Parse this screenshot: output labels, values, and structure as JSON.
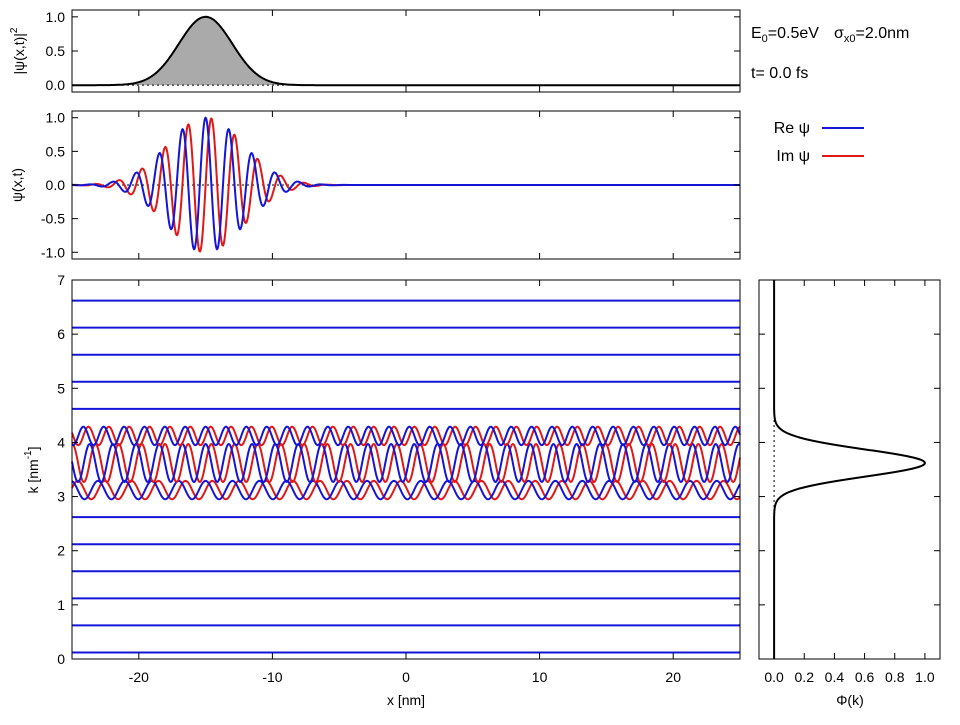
{
  "chart_data": [
    {
      "type": "area",
      "name": "probability-density",
      "xlim": [
        -25,
        25
      ],
      "ylim": [
        -0.1,
        1.1
      ],
      "ylabel": "|ψ(x,t)|",
      "ylabel_sup": "2",
      "yticks": [
        "1.0",
        "0.5",
        "0.0"
      ],
      "yticks_values": [
        1.0,
        0.5,
        0.0
      ],
      "center_x": -15,
      "sigma_x": 2.0,
      "peak": 1.0,
      "fill_color": "#aaaaaa",
      "line_color": "#000000"
    },
    {
      "type": "line",
      "name": "wavefunction",
      "xlim": [
        -25,
        25
      ],
      "ylim": [
        -1.1,
        1.1
      ],
      "ylabel": "ψ(x,t)",
      "yticks": [
        "1.0",
        "0.5",
        "0.0",
        "-0.5",
        "-1.0"
      ],
      "yticks_values": [
        1.0,
        0.5,
        0.0,
        -0.5,
        -1.0
      ],
      "series": [
        {
          "name": "Re ψ",
          "color": "#1515d8",
          "part": "re"
        },
        {
          "name": "Im ψ",
          "color": "#e01818",
          "part": "im"
        }
      ],
      "center_x": -15,
      "sigma_x": 2.0,
      "k0": 3.62
    },
    {
      "type": "line",
      "name": "k-component-waves",
      "xlim": [
        -25,
        25
      ],
      "ylim": [
        0,
        7
      ],
      "xlabel": "x [nm]",
      "ylabel": "k [nm",
      "ylabel_sup": "-1",
      "ylabel_tail": "]",
      "xticks": [
        "-20",
        "-10",
        "0",
        "10",
        "20"
      ],
      "xticks_values": [
        -20,
        -10,
        0,
        10,
        20
      ],
      "yticks": [
        "0",
        "1",
        "2",
        "3",
        "4",
        "5",
        "6",
        "7"
      ],
      "yticks_values": [
        0,
        1,
        2,
        3,
        4,
        5,
        6,
        7
      ],
      "k_levels": [
        0.12,
        0.62,
        1.12,
        1.62,
        2.12,
        2.62,
        3.12,
        3.62,
        4.12,
        4.62,
        5.12,
        5.62,
        6.12,
        6.62
      ],
      "amplitudes": [
        0,
        0,
        0,
        0,
        0,
        0.01,
        0.17,
        0.35,
        0.17,
        0.01,
        0,
        0,
        0,
        0
      ],
      "colors": {
        "re": "#1515d8",
        "im": "#e01818"
      }
    },
    {
      "type": "line",
      "name": "momentum-distribution",
      "xlim": [
        -0.1,
        1.1
      ],
      "ylim": [
        0,
        7
      ],
      "xlabel": "Φ(k)",
      "xticks": [
        "0.0",
        "0.2",
        "0.4",
        "0.6",
        "0.8",
        "1.0"
      ],
      "xticks_values": [
        0,
        0.2,
        0.4,
        0.6,
        0.8,
        1.0
      ],
      "k0": 3.62,
      "sigma_k": 0.25,
      "peak": 1.0,
      "line_color": "#000000"
    }
  ],
  "info": {
    "energy_label": "E",
    "energy_sub": "0",
    "energy_value": "=0.5eV",
    "sigma_symbol": "σ",
    "sigma_sub": "x0",
    "sigma_value": "=2.0nm",
    "time_label": "t=  0.0 fs"
  },
  "legend": {
    "re_label": "Re ψ",
    "im_label": "Im ψ",
    "re_color": "#1515d8",
    "im_color": "#e01818"
  }
}
